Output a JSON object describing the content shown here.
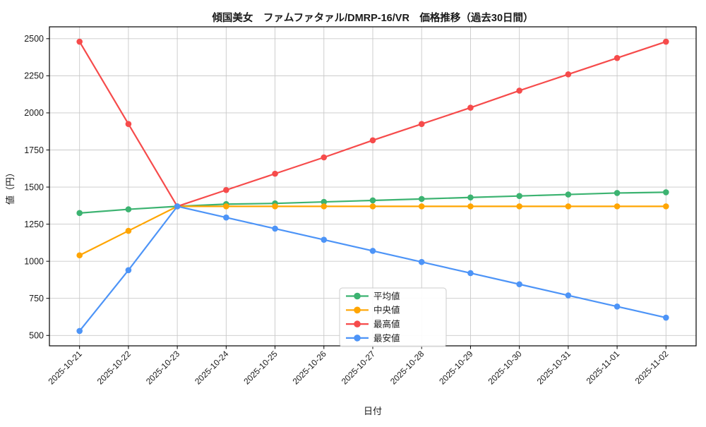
{
  "chart_data": {
    "type": "line",
    "title": "傾国美女　ファムファタァル/DMRP-16/VR　価格推移（過去30日間）",
    "xlabel": "日付",
    "ylabel": "値（円）",
    "x": [
      "2025-10-21",
      "2025-10-22",
      "2025-10-23",
      "2025-10-24",
      "2025-10-25",
      "2025-10-26",
      "2025-10-27",
      "2025-10-28",
      "2025-10-29",
      "2025-10-30",
      "2025-10-31",
      "2025-11-01",
      "2025-11-02"
    ],
    "series": [
      {
        "key": "avg",
        "name": "平均値",
        "color": "#3cb371",
        "values": [
          1325,
          1350,
          1370,
          1385,
          1390,
          1400,
          1410,
          1420,
          1430,
          1440,
          1450,
          1460,
          1465
        ]
      },
      {
        "key": "median",
        "name": "中央値",
        "color": "#ffa502",
        "values": [
          1040,
          1205,
          1370,
          1370,
          1370,
          1370,
          1370,
          1370,
          1370,
          1370,
          1370,
          1370,
          1370
        ]
      },
      {
        "key": "max",
        "name": "最高値",
        "color": "#f64b4b",
        "values": [
          2480,
          1925,
          1370,
          1480,
          1590,
          1700,
          1815,
          1925,
          2035,
          2150,
          2260,
          2370,
          2480
        ]
      },
      {
        "key": "min",
        "name": "最安値",
        "color": "#4d94f7",
        "values": [
          530,
          940,
          1370,
          1295,
          1220,
          1145,
          1070,
          995,
          920,
          845,
          770,
          695,
          620
        ]
      }
    ],
    "yticks": [
      500,
      750,
      1000,
      1250,
      1500,
      1750,
      2000,
      2250,
      2500
    ],
    "ylim": [
      430,
      2580
    ],
    "grid": true,
    "legend_position": "lower-center",
    "grid_color": "#c9c9c9",
    "spine_color": "#000000",
    "background": "#ffffff"
  }
}
